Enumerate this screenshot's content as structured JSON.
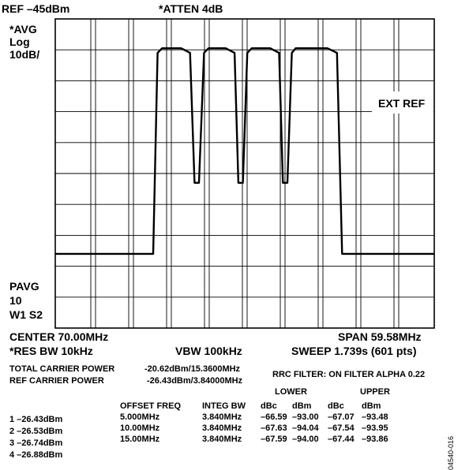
{
  "header": {
    "ref_level": "REF –45dBm",
    "atten": "*ATTEN 4dB",
    "avg": "*AVG",
    "log": "Log",
    "scale": "10dB/",
    "ext_ref": "EXT REF",
    "pavg": "PAVG",
    "pavg_count": "10",
    "trace_mode": "W1 S2"
  },
  "settings": {
    "center": "CENTER 70.00MHz",
    "span": "SPAN 59.58MHz",
    "res_bw": "*RES BW 10kHz",
    "vbw": "VBW 100kHz",
    "sweep": "SWEEP 1.739s (601 pts)"
  },
  "power": {
    "total_label": "TOTAL CARRIER POWER",
    "total_value": "-20.62dBm/15.3600MHz",
    "ref_label": "REF CARRIER POWER",
    "ref_value": "-26.43dBm/3.84000MHz",
    "rrc_filter": "RRC FILTER: ON FILTER ALPHA 0.22"
  },
  "offsets_table": {
    "group_lower": "LOWER",
    "group_upper": "UPPER",
    "headers": [
      "OFFSET FREQ",
      "INTEG BW",
      "dBc",
      "dBm",
      "dBc",
      "dBm"
    ],
    "rows": [
      [
        "5.000MHz",
        "3.840MHz",
        "–66.59",
        "–93.00",
        "–67.07",
        "–93.48"
      ],
      [
        "10.00MHz",
        "3.840MHz",
        "–67.63",
        "–94.04",
        "–67.54",
        "–93.95"
      ],
      [
        "15.00MHz",
        "3.840MHz",
        "–67.59",
        "–94.00",
        "–67.44",
        "–93.86"
      ]
    ]
  },
  "carriers": [
    "1 –26.43dBm",
    "2 –26.53dBm",
    "3 –26.74dBm",
    "4 –26.88dBm"
  ],
  "figure_id": "04540-016",
  "chart_data": {
    "type": "line",
    "title": "",
    "xlabel": "",
    "ylabel": "",
    "x_center_mhz": 70.0,
    "x_span_mhz": 59.58,
    "xlim": [
      40.21,
      99.79
    ],
    "ylim": [
      -145,
      -45
    ],
    "y_scale_db_per_div": 10,
    "grid": true,
    "series": [
      {
        "x": [
          40.21,
          54.0,
          55.6,
          56.3,
          57.0,
          60.0,
          61.4,
          62.1,
          62.8,
          63.6,
          64.3,
          67.0,
          68.4,
          69.0,
          69.7,
          70.4,
          71.1,
          74.0,
          75.4,
          76.0,
          76.7,
          77.4,
          78.0,
          83.0,
          84.5,
          85.3,
          86.1,
          99.79
        ],
        "y": [
          -121.0,
          -121.0,
          -121.0,
          -56.0,
          -54.5,
          -54.5,
          -56.0,
          -98.0,
          -98.0,
          -56.0,
          -54.5,
          -54.5,
          -56.0,
          -98.0,
          -98.0,
          -56.0,
          -54.5,
          -54.5,
          -56.0,
          -98.0,
          -98.0,
          -56.0,
          -54.5,
          -54.5,
          -56.0,
          -121.0,
          -121.0,
          -121.0
        ]
      }
    ]
  }
}
